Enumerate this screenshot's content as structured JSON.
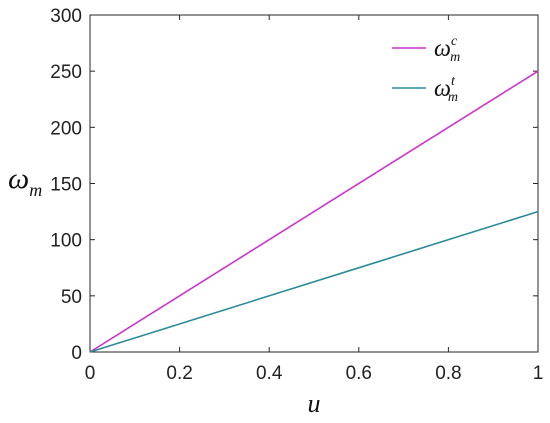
{
  "chart_data": {
    "type": "line",
    "xlabel": "u",
    "ylabel": {
      "main": "ω",
      "sub": "m"
    },
    "xlim": [
      0,
      1
    ],
    "ylim": [
      0,
      300
    ],
    "xticks": [
      0,
      0.2,
      0.4,
      0.6,
      0.8,
      1
    ],
    "xtick_labels": [
      "0",
      "0.2",
      "0.4",
      "0.6",
      "0.8",
      "1"
    ],
    "yticks": [
      0,
      50,
      100,
      150,
      200,
      250,
      300
    ],
    "ytick_labels": [
      "0",
      "50",
      "100",
      "150",
      "200",
      "250",
      "300"
    ],
    "grid": false,
    "legend_position": "top-right",
    "series": [
      {
        "name": "ω_m^c",
        "symbol": "ω",
        "sub": "m",
        "sup": "c",
        "color": "#cc33cc",
        "x": [
          0,
          1
        ],
        "y": [
          0,
          250
        ]
      },
      {
        "name": "ω_m^t",
        "symbol": "ω",
        "sub": "m",
        "sup": "t",
        "color": "#2a8a99",
        "x": [
          0,
          1
        ],
        "y": [
          0,
          125
        ]
      }
    ]
  }
}
